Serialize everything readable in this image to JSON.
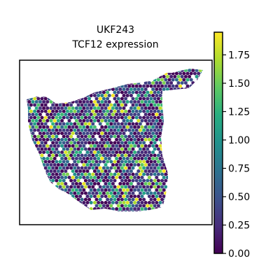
{
  "chart_data": {
    "type": "scatter",
    "title": "UKF243",
    "subtitle": "TCF12 expression",
    "xlabel": "",
    "ylabel": "",
    "colormap": "viridis",
    "colorbar": {
      "min": 0.0,
      "max": 1.95,
      "ticks": [
        "0.00",
        "0.25",
        "0.50",
        "0.75",
        "1.00",
        "1.25",
        "1.50",
        "1.75"
      ]
    },
    "grid": false
  }
}
